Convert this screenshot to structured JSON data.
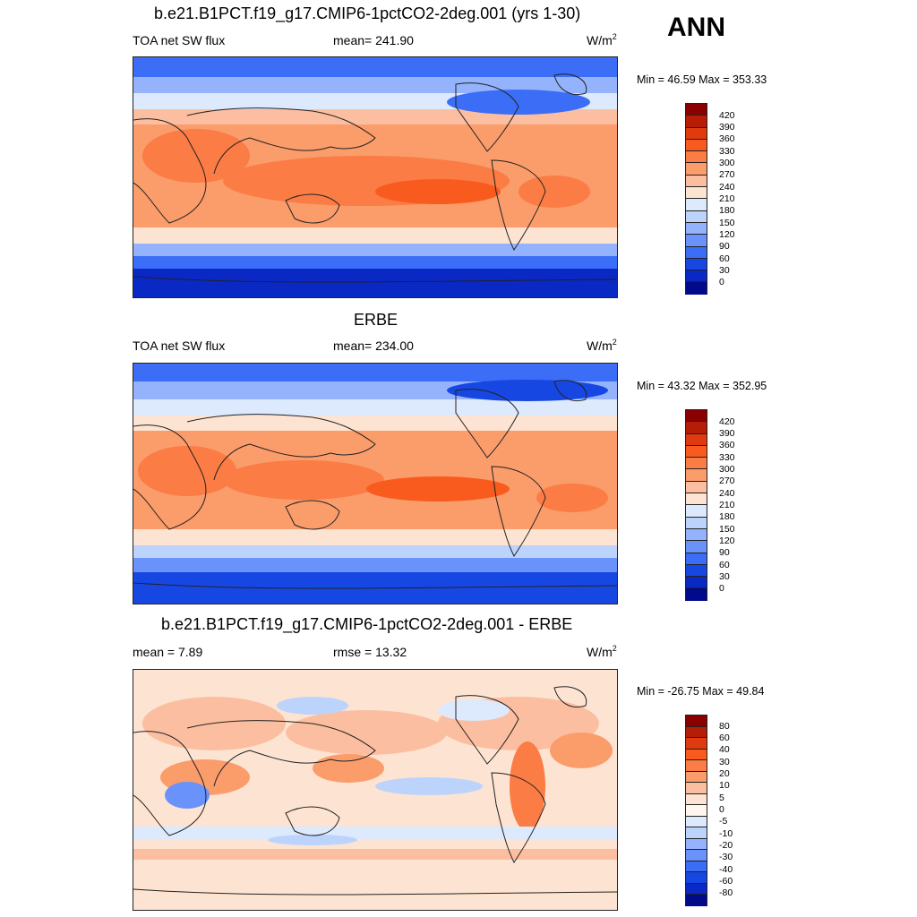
{
  "season": "ANN",
  "units_base": "W/m",
  "units_sup": "2",
  "panels": [
    {
      "title": "b.e21.B1PCT.f19_g17.CMIP6-1pctCO2-2deg.001 (yrs 1-30)",
      "left": "TOA net SW flux",
      "mid": "mean= 241.90",
      "minmax": "Min =  46.59 Max = 353.33",
      "levels": [
        "420",
        "390",
        "360",
        "330",
        "300",
        "270",
        "240",
        "210",
        "180",
        "150",
        "120",
        "90",
        "60",
        "30",
        "0"
      ]
    },
    {
      "title": "ERBE",
      "left": "TOA net SW flux",
      "mid": "mean= 234.00",
      "minmax": "Min =  43.32 Max = 352.95",
      "levels": [
        "420",
        "390",
        "360",
        "330",
        "300",
        "270",
        "240",
        "210",
        "180",
        "150",
        "120",
        "90",
        "60",
        "30",
        "0"
      ]
    },
    {
      "title": "b.e21.B1PCT.f19_g17.CMIP6-1pctCO2-2deg.001 - ERBE",
      "left": "mean =   7.89",
      "mid": "rmse =  13.32",
      "minmax": "Min = -26.75 Max =  49.84",
      "levels": [
        "80",
        "60",
        "40",
        "30",
        "20",
        "10",
        "5",
        "0",
        "-5",
        "-10",
        "-20",
        "-30",
        "-40",
        "-60",
        "-80"
      ]
    }
  ],
  "colors": {
    "abs_scale": [
      "#8a0000",
      "#b51d06",
      "#df3b0e",
      "#f95b1f",
      "#fb7c44",
      "#fb9c6b",
      "#fcbea0",
      "#fde4d2",
      "#dde9fc",
      "#bcd3fc",
      "#94b3fc",
      "#6a92fb",
      "#3c6df6",
      "#1747e2",
      "#0a28c4",
      "#000a8a"
    ],
    "diff_scale": [
      "#8a0000",
      "#b51d06",
      "#df3b0e",
      "#f95b1f",
      "#fb7c44",
      "#fb9c6b",
      "#fcbea0",
      "#fde4d2",
      "#fff6ef",
      "#dde9fc",
      "#bcd3fc",
      "#94b3fc",
      "#6a92fb",
      "#3c6df6",
      "#1747e2",
      "#0a28c4",
      "#000a8a"
    ]
  }
}
